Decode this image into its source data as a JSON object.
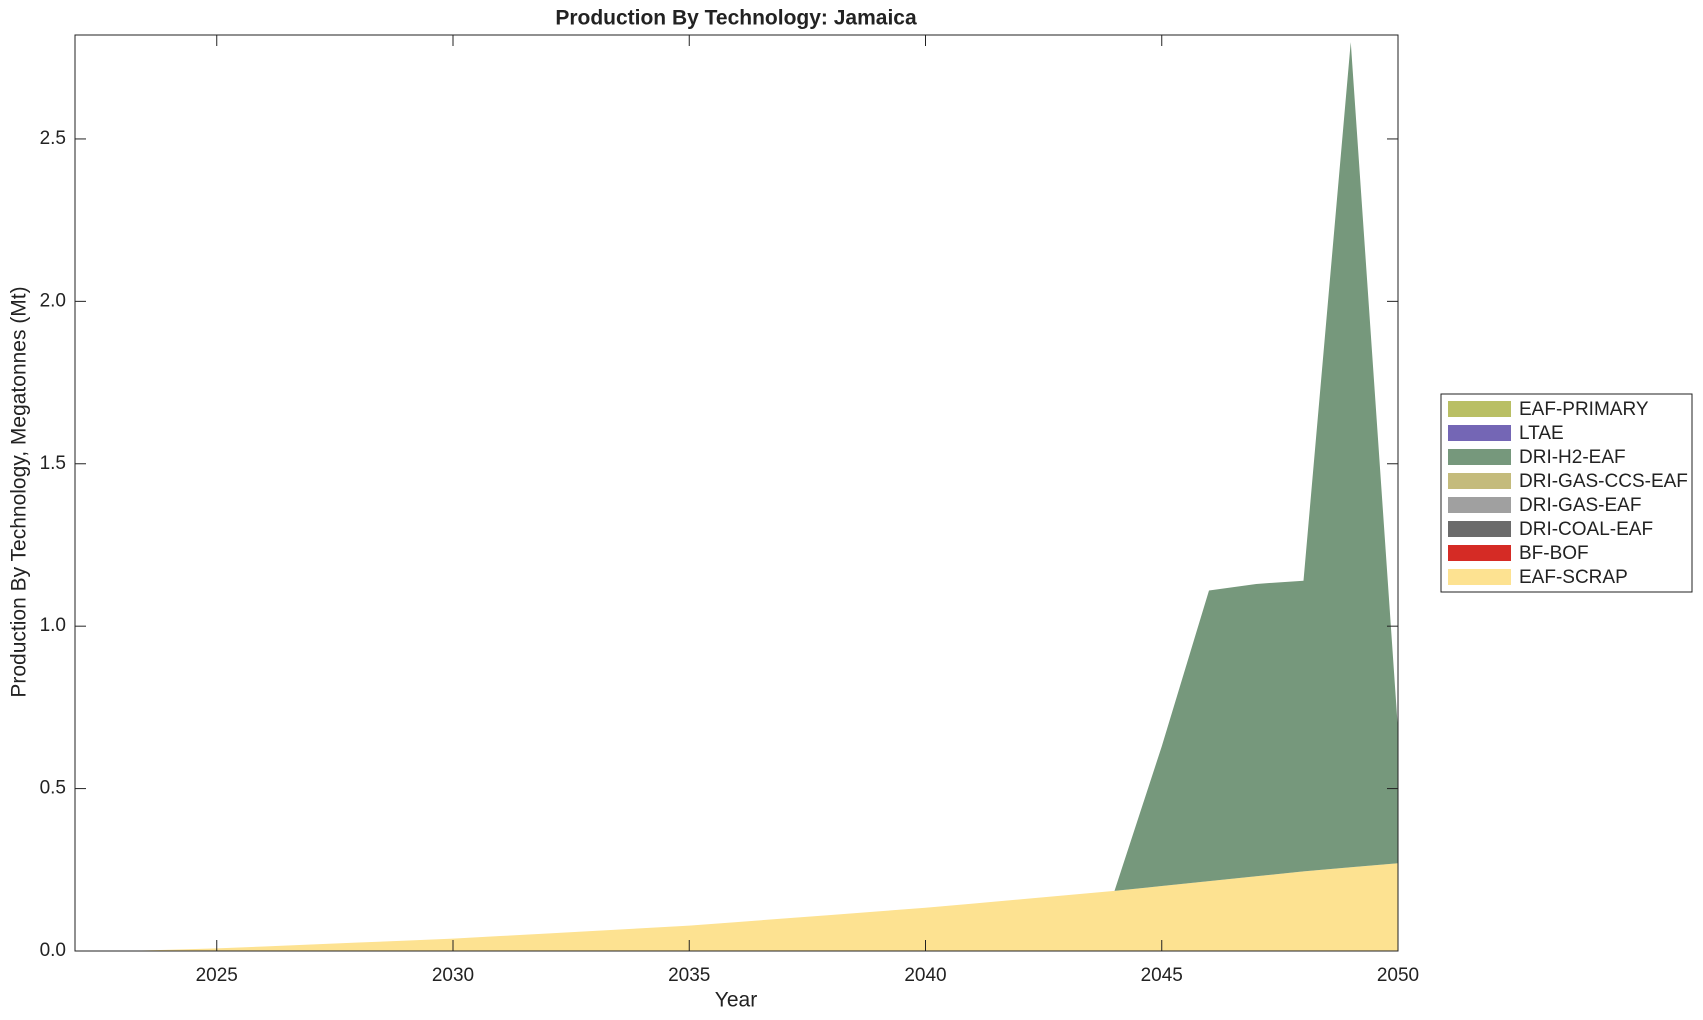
{
  "chart_data": {
    "type": "stacked_area",
    "title": "Production By Technology: Jamaica",
    "xlabel": "Year",
    "ylabel": "Production By Technology, Megatonnes (Mt)",
    "x": [
      2022,
      2023,
      2024,
      2025,
      2026,
      2027,
      2028,
      2029,
      2030,
      2031,
      2032,
      2033,
      2034,
      2035,
      2036,
      2037,
      2038,
      2039,
      2040,
      2041,
      2042,
      2043,
      2044,
      2045,
      2046,
      2047,
      2048,
      2049,
      2050
    ],
    "series": [
      {
        "name": "EAF-PRIMARY",
        "color": "#b9bf64",
        "values": [
          0,
          0,
          0,
          0,
          0,
          0,
          0,
          0,
          0,
          0,
          0,
          0,
          0,
          0,
          0,
          0,
          0,
          0,
          0,
          0,
          0,
          0,
          0,
          0,
          0,
          0,
          0,
          0,
          0
        ]
      },
      {
        "name": "LTAE",
        "color": "#7466b5",
        "values": [
          0,
          0,
          0,
          0,
          0,
          0,
          0,
          0,
          0,
          0,
          0,
          0,
          0,
          0,
          0,
          0,
          0,
          0,
          0,
          0,
          0,
          0,
          0,
          0,
          0,
          0,
          0,
          0,
          0
        ]
      },
      {
        "name": "DRI-H2-EAF",
        "color": "#76987c",
        "values": [
          0,
          0,
          0,
          0,
          0,
          0,
          0,
          0,
          0,
          0,
          0,
          0,
          0,
          0,
          0,
          0,
          0,
          0,
          0,
          0,
          0,
          0,
          0,
          0.43,
          0.895,
          0.9,
          0.895,
          2.54,
          0.41
        ]
      },
      {
        "name": "DRI-GAS-CCS-EAF",
        "color": "#c4bb7c",
        "values": [
          0,
          0,
          0,
          0,
          0,
          0,
          0,
          0,
          0,
          0,
          0,
          0,
          0,
          0,
          0,
          0,
          0,
          0,
          0,
          0,
          0,
          0,
          0,
          0,
          0,
          0,
          0,
          0,
          0
        ]
      },
      {
        "name": "DRI-GAS-EAF",
        "color": "#a0a0a0",
        "values": [
          0,
          0,
          0,
          0,
          0,
          0,
          0,
          0,
          0,
          0,
          0,
          0,
          0,
          0,
          0,
          0,
          0,
          0,
          0,
          0,
          0,
          0,
          0,
          0,
          0,
          0,
          0,
          0,
          0
        ]
      },
      {
        "name": "DRI-COAL-EAF",
        "color": "#6b6b6b",
        "values": [
          0,
          0,
          0,
          0,
          0,
          0,
          0,
          0,
          0,
          0,
          0,
          0,
          0,
          0,
          0,
          0,
          0,
          0,
          0,
          0,
          0,
          0,
          0,
          0,
          0,
          0,
          0,
          0,
          0
        ]
      },
      {
        "name": "BF-BOF",
        "color": "#d52b25",
        "values": [
          0,
          0,
          0,
          0,
          0,
          0,
          0,
          0,
          0,
          0,
          0,
          0,
          0,
          0,
          0,
          0,
          0,
          0,
          0,
          0,
          0,
          0,
          0,
          0,
          0,
          0,
          0,
          0,
          0
        ]
      },
      {
        "name": "EAF-SCRAP",
        "color": "#fde291",
        "values": [
          0,
          0,
          0.004,
          0.008,
          0.014,
          0.02,
          0.026,
          0.032,
          0.038,
          0.046,
          0.054,
          0.062,
          0.07,
          0.078,
          0.089,
          0.1,
          0.111,
          0.122,
          0.133,
          0.146,
          0.159,
          0.172,
          0.185,
          0.2,
          0.215,
          0.23,
          0.245,
          0.258,
          0.27
        ]
      }
    ],
    "xlim": [
      2022,
      2050
    ],
    "xticks": [
      2025,
      2030,
      2035,
      2040,
      2045,
      2050
    ],
    "ylim": [
      0,
      2.82
    ],
    "yticks": [
      {
        "value": 0,
        "label": "0.0"
      },
      0.5,
      {
        "value": 1,
        "label": "1.0"
      },
      1.5,
      {
        "value": 2,
        "label": "2.0"
      },
      2.5
    ],
    "grid": false,
    "legend": "right"
  }
}
